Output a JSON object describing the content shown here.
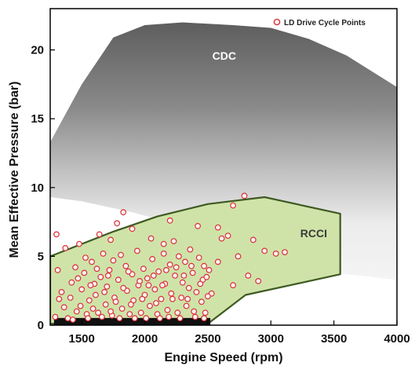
{
  "chart_data": {
    "type": "scatter",
    "xlabel": "Engine Speed (rpm)",
    "ylabel": "Mean Effective Pressure (bar)",
    "xlim": [
      1250,
      4000
    ],
    "ylim": [
      0,
      23
    ],
    "xticks": [
      1500,
      2000,
      2500,
      3000,
      3500,
      4000
    ],
    "yticks": [
      0,
      5,
      10,
      15,
      20
    ],
    "grid": false,
    "legend": {
      "position": "top-right",
      "entries": [
        "LD Drive Cycle Points"
      ]
    },
    "colors": {
      "cdc_dark": "#555555",
      "cdc_light": "#f2f2f2",
      "rcci_fill": "#cfe3a8",
      "rcci_edge": "#3e5a22",
      "point_edge": "#d9303a",
      "point_fill": "#fff4f0",
      "dense_band": "#111111"
    },
    "regions": [
      {
        "label": "CDC",
        "kind": "gradient-envelope",
        "boundary": [
          [
            1250,
            13.3
          ],
          [
            1500,
            17.5
          ],
          [
            1750,
            20.9
          ],
          [
            2000,
            21.8
          ],
          [
            2300,
            22.0
          ],
          [
            2700,
            21.8
          ],
          [
            3000,
            21.6
          ],
          [
            3300,
            20.8
          ],
          [
            3600,
            19.6
          ],
          [
            4000,
            17.3
          ],
          [
            4000,
            3.3
          ],
          [
            3600,
            3.7
          ],
          [
            3100,
            4.8
          ],
          [
            2700,
            5.9
          ],
          [
            2300,
            7.2
          ],
          [
            1900,
            8.2
          ],
          [
            1500,
            9.0
          ],
          [
            1250,
            9.3
          ]
        ],
        "label_at": [
          2630,
          19.3
        ]
      },
      {
        "label": "RCCI",
        "kind": "polygon",
        "boundary": [
          [
            1250,
            5.0
          ],
          [
            1750,
            6.8
          ],
          [
            2100,
            7.9
          ],
          [
            2500,
            8.8
          ],
          [
            2950,
            9.3
          ],
          [
            3550,
            8.1
          ],
          [
            3550,
            3.7
          ],
          [
            2800,
            2.2
          ],
          [
            2500,
            0.1
          ],
          [
            1250,
            0.1
          ]
        ],
        "label_at": [
          3340,
          6.4
        ]
      }
    ],
    "series": [
      {
        "name": "LD Drive Cycle Points",
        "dense_band": {
          "x": [
            1280,
            2520
          ],
          "y": [
            0,
            0.35
          ]
        },
        "points": [
          [
            1300,
            6.6
          ],
          [
            1370,
            5.6
          ],
          [
            1480,
            5.9
          ],
          [
            1640,
            6.6
          ],
          [
            1730,
            6.2
          ],
          [
            1780,
            7.4
          ],
          [
            1830,
            8.2
          ],
          [
            1900,
            7.0
          ],
          [
            2050,
            6.3
          ],
          [
            2150,
            5.9
          ],
          [
            2200,
            7.6
          ],
          [
            2420,
            7.2
          ],
          [
            2580,
            7.1
          ],
          [
            2610,
            6.3
          ],
          [
            2660,
            6.5
          ],
          [
            2700,
            8.7
          ],
          [
            2790,
            9.4
          ],
          [
            2860,
            6.2
          ],
          [
            2950,
            5.4
          ],
          [
            3040,
            5.2
          ],
          [
            3110,
            5.3
          ],
          [
            2740,
            5.0
          ],
          [
            2580,
            4.6
          ],
          [
            2470,
            4.3
          ],
          [
            2820,
            3.6
          ],
          [
            2900,
            3.2
          ],
          [
            2700,
            2.9
          ],
          [
            2530,
            2.3
          ],
          [
            1310,
            4.0
          ],
          [
            1340,
            2.4
          ],
          [
            1360,
            1.3
          ],
          [
            1420,
            3.1
          ],
          [
            1450,
            4.2
          ],
          [
            1460,
            1.0
          ],
          [
            1500,
            2.6
          ],
          [
            1520,
            3.8
          ],
          [
            1540,
            0.8
          ],
          [
            1560,
            1.8
          ],
          [
            1580,
            4.6
          ],
          [
            1600,
            3.0
          ],
          [
            1610,
            2.2
          ],
          [
            1630,
            0.9
          ],
          [
            1650,
            3.5
          ],
          [
            1670,
            5.2
          ],
          [
            1690,
            1.5
          ],
          [
            1700,
            2.8
          ],
          [
            1720,
            4.0
          ],
          [
            1740,
            0.7
          ],
          [
            1760,
            2.0
          ],
          [
            1790,
            3.3
          ],
          [
            1810,
            5.1
          ],
          [
            1820,
            1.2
          ],
          [
            1850,
            4.3
          ],
          [
            1860,
            2.5
          ],
          [
            1880,
            0.8
          ],
          [
            1900,
            3.7
          ],
          [
            1910,
            1.8
          ],
          [
            1940,
            5.4
          ],
          [
            1950,
            2.9
          ],
          [
            1970,
            0.9
          ],
          [
            1990,
            4.1
          ],
          [
            2000,
            2.2
          ],
          [
            2020,
            3.4
          ],
          [
            2040,
            1.4
          ],
          [
            2060,
            4.8
          ],
          [
            2080,
            2.6
          ],
          [
            2100,
            0.8
          ],
          [
            2110,
            3.9
          ],
          [
            2130,
            1.9
          ],
          [
            2150,
            5.2
          ],
          [
            2160,
            3.0
          ],
          [
            2180,
            1.1
          ],
          [
            2200,
            4.4
          ],
          [
            2210,
            2.3
          ],
          [
            2230,
            6.1
          ],
          [
            2240,
            3.6
          ],
          [
            2260,
            0.9
          ],
          [
            2270,
            5.0
          ],
          [
            2290,
            2.0
          ],
          [
            2300,
            3.1
          ],
          [
            2320,
            4.6
          ],
          [
            2330,
            1.4
          ],
          [
            2350,
            2.7
          ],
          [
            2360,
            5.5
          ],
          [
            2380,
            3.8
          ],
          [
            2390,
            1.0
          ],
          [
            2410,
            2.4
          ],
          [
            2430,
            4.9
          ],
          [
            2450,
            1.7
          ],
          [
            2460,
            3.3
          ],
          [
            2480,
            0.9
          ],
          [
            2500,
            2.1
          ],
          [
            2510,
            4.0
          ],
          [
            1290,
            0.6
          ],
          [
            1320,
            1.9
          ],
          [
            1390,
            0.5
          ],
          [
            1410,
            2.0
          ],
          [
            1430,
            0.4
          ],
          [
            1470,
            3.4
          ],
          [
            1490,
            1.4
          ],
          [
            1530,
            4.9
          ],
          [
            1550,
            0.5
          ],
          [
            1570,
            2.9
          ],
          [
            1590,
            1.2
          ],
          [
            1620,
            4.1
          ],
          [
            1660,
            0.6
          ],
          [
            1680,
            2.4
          ],
          [
            1710,
            3.6
          ],
          [
            1730,
            1.0
          ],
          [
            1750,
            4.7
          ],
          [
            1770,
            1.7
          ],
          [
            1800,
            0.5
          ],
          [
            1830,
            2.7
          ],
          [
            1870,
            3.9
          ],
          [
            1890,
            1.5
          ],
          [
            1920,
            0.5
          ],
          [
            1960,
            3.2
          ],
          [
            1980,
            1.9
          ],
          [
            2010,
            0.5
          ],
          [
            2030,
            2.9
          ],
          [
            2070,
            3.6
          ],
          [
            2090,
            1.6
          ],
          [
            2120,
            0.5
          ],
          [
            2140,
            2.9
          ],
          [
            2170,
            4.0
          ],
          [
            2190,
            0.6
          ],
          [
            2220,
            1.9
          ],
          [
            2250,
            4.2
          ],
          [
            2280,
            0.5
          ],
          [
            2310,
            3.6
          ],
          [
            2340,
            1.9
          ],
          [
            2370,
            4.3
          ],
          [
            2400,
            0.6
          ],
          [
            2440,
            3.0
          ],
          [
            2470,
            0.5
          ],
          [
            2490,
            3.5
          ]
        ]
      }
    ]
  }
}
